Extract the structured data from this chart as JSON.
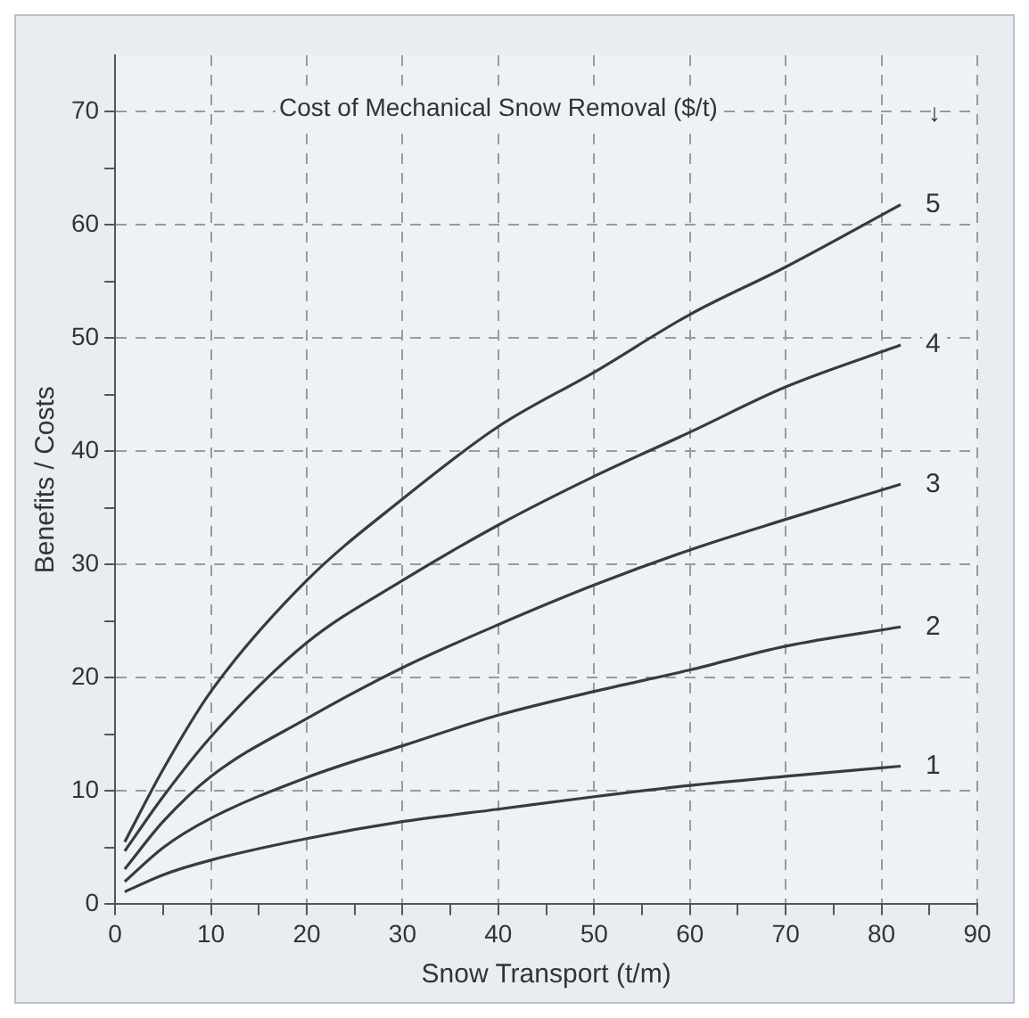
{
  "chart_data": {
    "type": "line",
    "legend_title": "Cost of Mechanical Snow Removal ($/t)",
    "annotations": [
      "↓"
    ],
    "xlabel": "Snow Transport (t/m)",
    "ylabel": "Benefits / Costs",
    "x": [
      1,
      5,
      10,
      20,
      30,
      40,
      50,
      60,
      70,
      82
    ],
    "series": [
      {
        "name": "5",
        "color": "#3a3a3a",
        "values": [
          5.5,
          11.9,
          18.8,
          28.6,
          35.8,
          42.2,
          47.0,
          52.1,
          56.3,
          61.8
        ]
      },
      {
        "name": "4",
        "color": "#3a3a3a",
        "values": [
          4.7,
          9.5,
          14.8,
          23.1,
          28.6,
          33.5,
          37.8,
          41.7,
          45.7,
          49.4
        ]
      },
      {
        "name": "3",
        "color": "#3a3a3a",
        "values": [
          3.1,
          7.3,
          11.3,
          16.4,
          20.9,
          24.7,
          28.2,
          31.3,
          34.0,
          37.1
        ]
      },
      {
        "name": "2",
        "color": "#3a3a3a",
        "values": [
          2.0,
          5.0,
          7.6,
          11.2,
          14.0,
          16.7,
          18.8,
          20.7,
          22.8,
          24.5
        ]
      },
      {
        "name": "1",
        "color": "#3a3a3a",
        "values": [
          1.1,
          2.6,
          3.9,
          5.8,
          7.3,
          8.4,
          9.5,
          10.5,
          11.3,
          12.2
        ]
      }
    ],
    "xlim": [
      0,
      90
    ],
    "xticks": [
      0,
      {
        "value": 5,
        "label": null
      },
      10,
      {
        "value": 15,
        "label": null
      },
      20,
      {
        "value": 25,
        "label": null
      },
      30,
      {
        "value": 35,
        "label": null
      },
      40,
      {
        "value": 45,
        "label": null
      },
      50,
      {
        "value": 55,
        "label": null
      },
      60,
      {
        "value": 65,
        "label": null
      },
      70,
      {
        "value": 75,
        "label": null
      },
      80,
      {
        "value": 85,
        "label": null
      },
      90
    ],
    "ylim": [
      0,
      75
    ],
    "yticks": [
      0,
      {
        "value": 5,
        "label": null
      },
      10,
      {
        "value": 15,
        "label": null
      },
      20,
      {
        "value": 25,
        "label": null
      },
      30,
      {
        "value": 35,
        "label": null
      },
      40,
      {
        "value": 45,
        "label": null
      },
      50,
      {
        "value": 55,
        "label": null
      },
      60,
      {
        "value": 65,
        "label": null
      },
      70
    ],
    "grid": true,
    "legend": false,
    "marker": "none",
    "line_style": "solid"
  }
}
